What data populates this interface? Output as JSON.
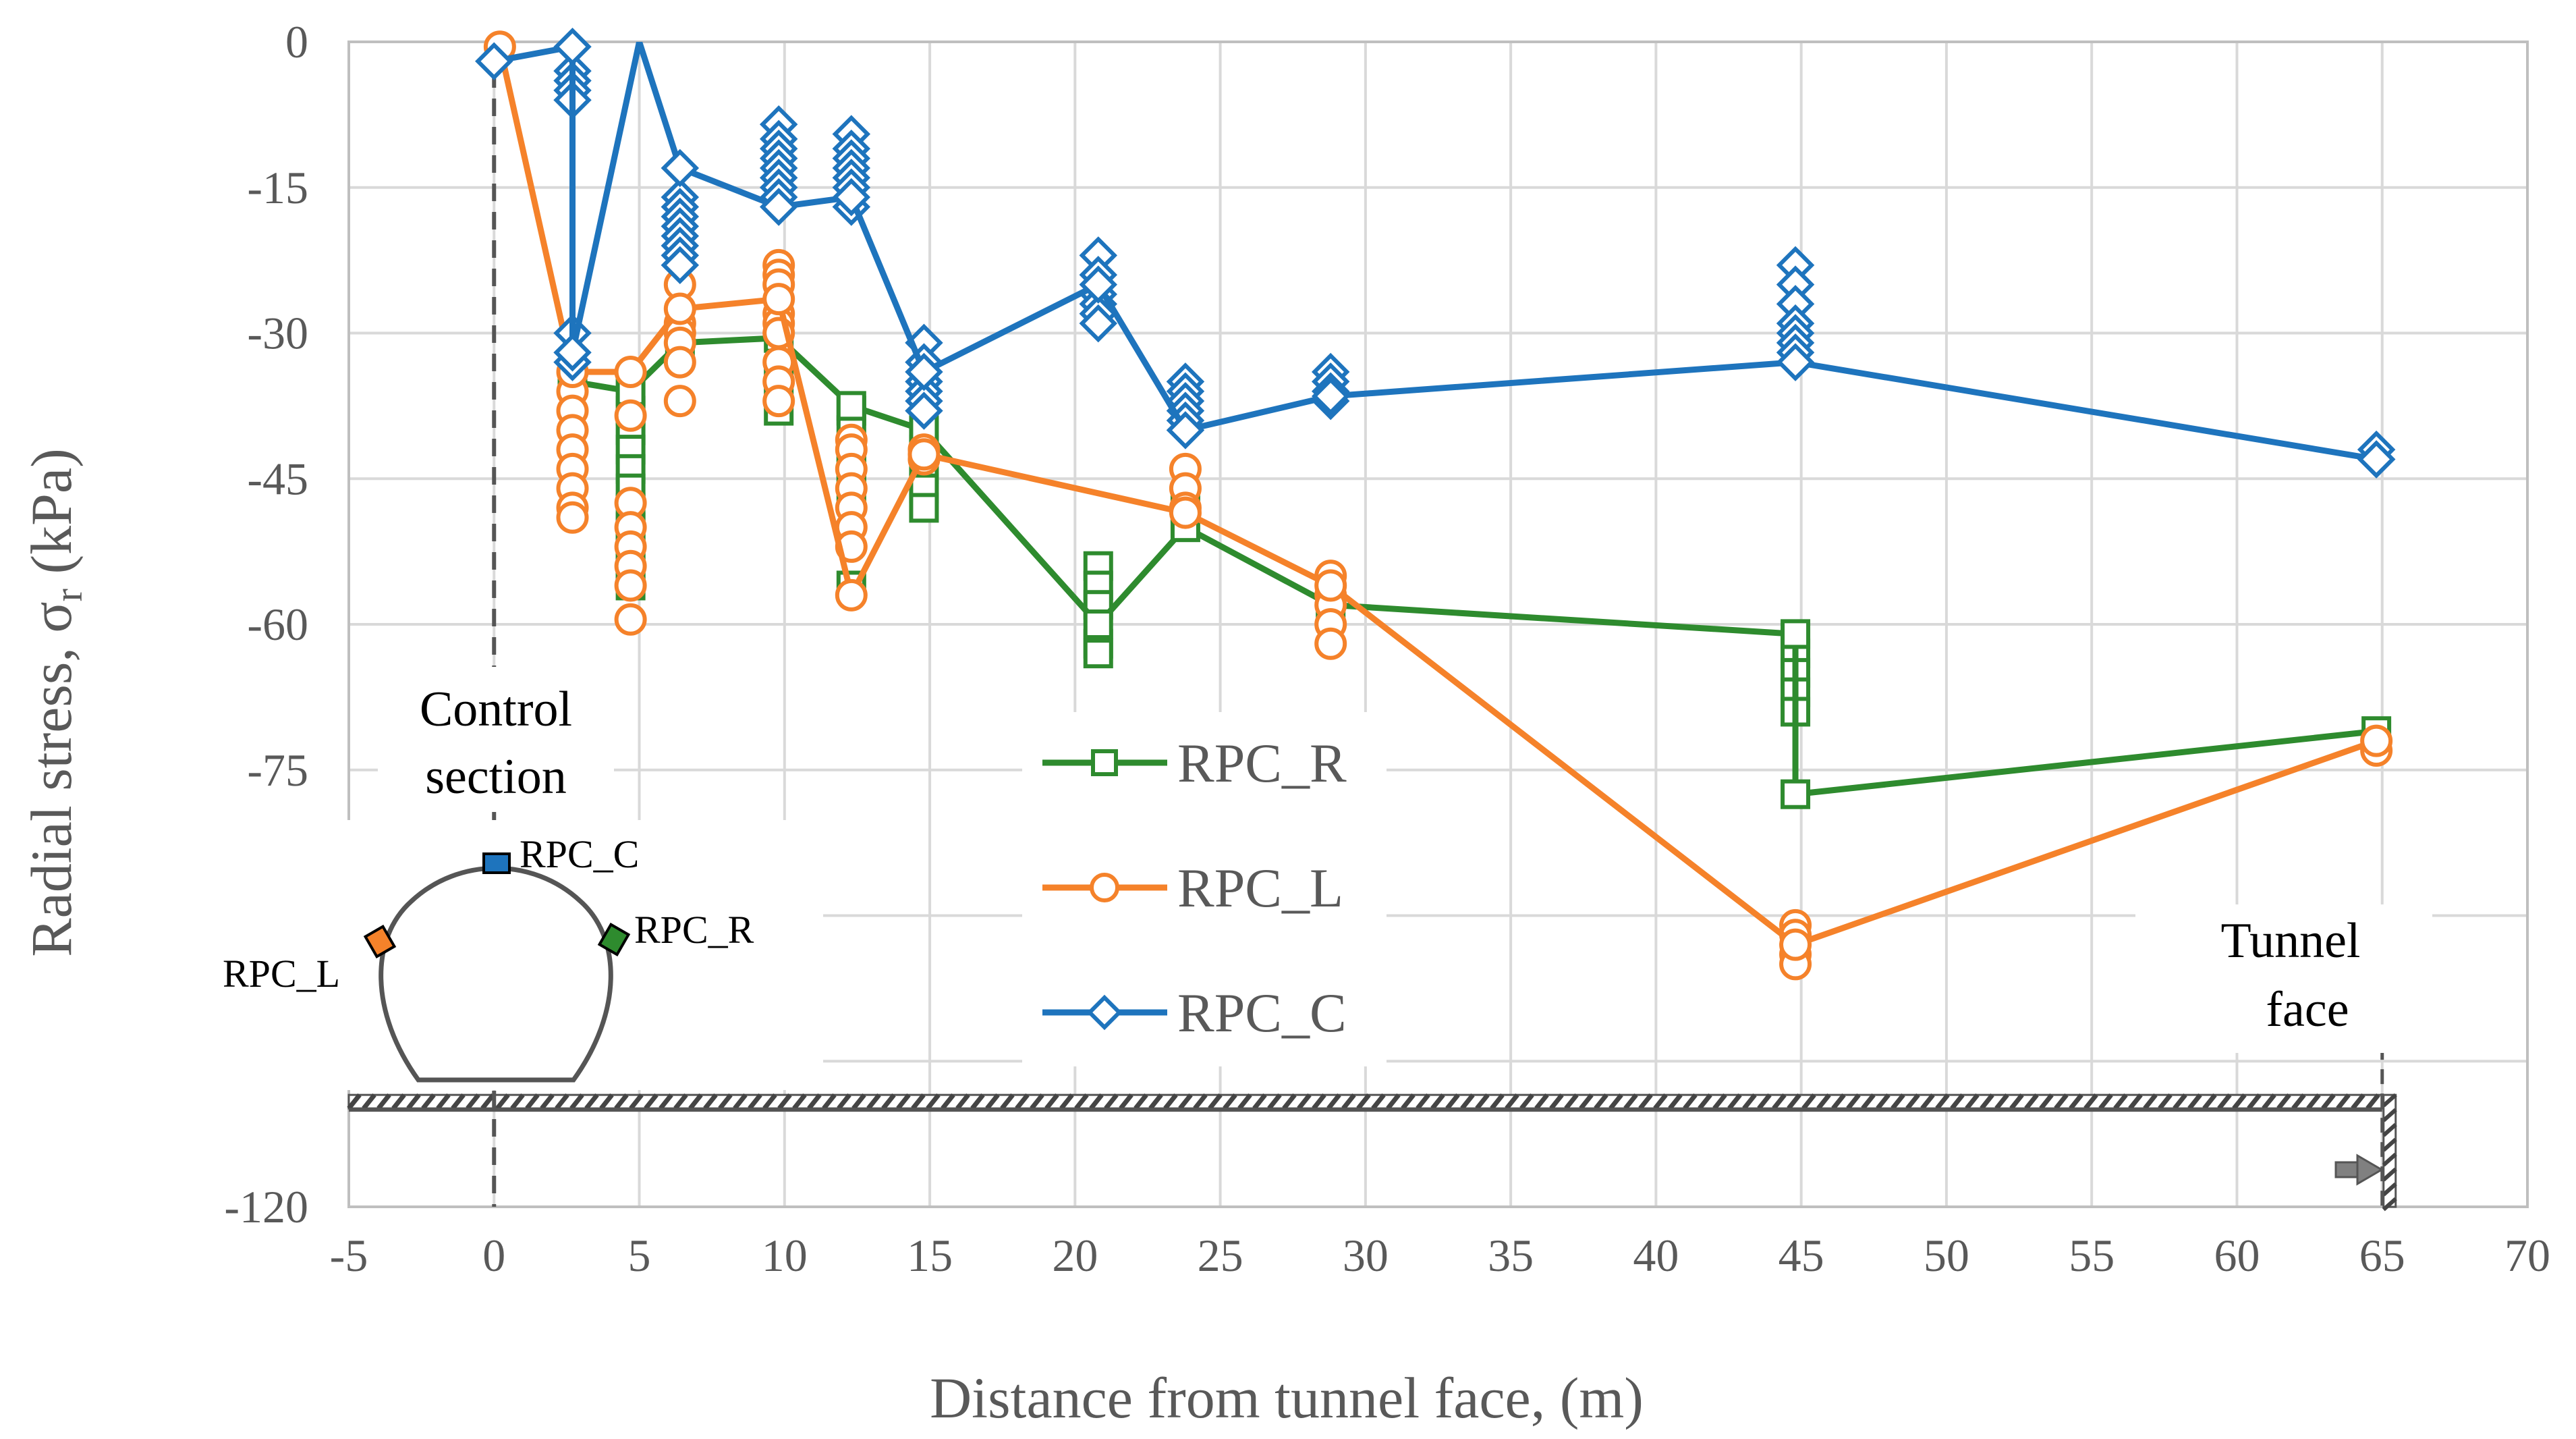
{
  "chart_data": {
    "type": "line",
    "xlabel": "Distance from tunnel face, (m)",
    "ylabel": "Radial stress, σ",
    "ylabel_subscript": "r",
    "ylabel_unit": " (kPa)",
    "xlim": [
      -5,
      70
    ],
    "ylim": [
      -120,
      0
    ],
    "x_ticks": [
      -5,
      0,
      5,
      10,
      15,
      20,
      25,
      30,
      35,
      40,
      45,
      50,
      55,
      60,
      65,
      70
    ],
    "y_ticks": [
      0,
      -15,
      -30,
      -45,
      -60,
      -75,
      -90,
      -105,
      -120
    ],
    "grid": true,
    "legend_position": "center",
    "series": [
      {
        "name": "RPC_R",
        "color": "#2E8B2E",
        "marker": "square",
        "x": [
          2.7,
          4.7,
          6.4,
          9.8,
          12.3,
          14.8,
          20.8,
          23.8,
          28.8,
          44.8,
          44.8,
          64.8
        ],
        "y": [
          -35,
          -36,
          -31,
          -30.5,
          -37.5,
          -40,
          -60,
          -50,
          -58,
          -61,
          -77.5,
          -71
        ]
      },
      {
        "name": "RPC_L",
        "color": "#F5822A",
        "marker": "circle",
        "x": [
          0.2,
          2.7,
          4.7,
          6.4,
          9.8,
          12.3,
          14.8,
          23.8,
          28.8,
          44.8,
          64.8
        ],
        "y": [
          -0.5,
          -34,
          -34,
          -27.5,
          -26.5,
          -57,
          -42.5,
          -48.5,
          -56,
          -93,
          -72
        ]
      },
      {
        "name": "RPC_C",
        "color": "#1E74BD",
        "marker": "diamond",
        "x": [
          0,
          2.7,
          2.7,
          5.0,
          6.4,
          9.8,
          12.3,
          14.8,
          20.8,
          23.8,
          28.8,
          44.8,
          64.8
        ],
        "y": [
          -2,
          -0.5,
          -32,
          0,
          -13,
          -17,
          -16,
          -34,
          -25,
          -40,
          -36.5,
          -33,
          -43
        ]
      }
    ],
    "scatter_points": {
      "RPC_R": [
        [
          4.7,
          -38
        ],
        [
          4.7,
          -40
        ],
        [
          4.7,
          -42
        ],
        [
          4.7,
          -44
        ],
        [
          4.7,
          -46
        ],
        [
          4.7,
          -48
        ],
        [
          4.7,
          -50
        ],
        [
          4.7,
          -52
        ],
        [
          4.7,
          -54
        ],
        [
          4.7,
          -56
        ],
        [
          9.8,
          -34
        ],
        [
          9.8,
          -36
        ],
        [
          9.8,
          -38
        ],
        [
          12.3,
          -38
        ],
        [
          12.3,
          -40
        ],
        [
          12.3,
          -42
        ],
        [
          12.3,
          -44
        ],
        [
          12.3,
          -46
        ],
        [
          12.3,
          -56
        ],
        [
          14.8,
          -42
        ],
        [
          14.8,
          -44
        ],
        [
          14.8,
          -46
        ],
        [
          14.8,
          -48
        ],
        [
          20.8,
          -54
        ],
        [
          20.8,
          -56
        ],
        [
          20.8,
          -58
        ],
        [
          20.8,
          -62
        ],
        [
          20.8,
          -63
        ],
        [
          23.8,
          -48
        ],
        [
          44.8,
          -63
        ],
        [
          44.8,
          -65
        ],
        [
          44.8,
          -67
        ],
        [
          44.8,
          -69
        ]
      ],
      "RPC_L": [
        [
          2.7,
          -36
        ],
        [
          2.7,
          -38
        ],
        [
          2.7,
          -40
        ],
        [
          2.7,
          -42
        ],
        [
          2.7,
          -44
        ],
        [
          2.7,
          -46
        ],
        [
          2.7,
          -48
        ],
        [
          2.7,
          -49
        ],
        [
          4.7,
          -38.5
        ],
        [
          4.7,
          -47.5
        ],
        [
          4.7,
          -50
        ],
        [
          4.7,
          -52
        ],
        [
          4.7,
          -54
        ],
        [
          4.7,
          -56
        ],
        [
          4.7,
          -59.5
        ],
        [
          6.4,
          -25
        ],
        [
          6.4,
          -29
        ],
        [
          6.4,
          -30
        ],
        [
          6.4,
          -31
        ],
        [
          6.4,
          -33
        ],
        [
          6.4,
          -37
        ],
        [
          9.8,
          -23
        ],
        [
          9.8,
          -24
        ],
        [
          9.8,
          -25
        ],
        [
          9.8,
          -28
        ],
        [
          9.8,
          -29
        ],
        [
          9.8,
          -30
        ],
        [
          9.8,
          -33
        ],
        [
          9.8,
          -35
        ],
        [
          9.8,
          -37
        ],
        [
          12.3,
          -41
        ],
        [
          12.3,
          -42
        ],
        [
          12.3,
          -44
        ],
        [
          12.3,
          -46
        ],
        [
          12.3,
          -48
        ],
        [
          12.3,
          -50
        ],
        [
          12.3,
          -52
        ],
        [
          14.8,
          -42
        ],
        [
          14.8,
          -43
        ],
        [
          23.8,
          -44
        ],
        [
          23.8,
          -46
        ],
        [
          23.8,
          -48
        ],
        [
          28.8,
          -55
        ],
        [
          28.8,
          -57
        ],
        [
          28.8,
          -58
        ],
        [
          28.8,
          -60
        ],
        [
          28.8,
          -62
        ],
        [
          44.8,
          -91
        ],
        [
          44.8,
          -92
        ],
        [
          44.8,
          -94
        ],
        [
          44.8,
          -95
        ],
        [
          64.8,
          -73
        ]
      ],
      "RPC_C": [
        [
          2.7,
          -3
        ],
        [
          2.7,
          -4
        ],
        [
          2.7,
          -5
        ],
        [
          2.7,
          -6
        ],
        [
          2.7,
          -30
        ],
        [
          2.7,
          -33
        ],
        [
          6.4,
          -16
        ],
        [
          6.4,
          -17
        ],
        [
          6.4,
          -18
        ],
        [
          6.4,
          -19
        ],
        [
          6.4,
          -20
        ],
        [
          6.4,
          -21
        ],
        [
          6.4,
          -22
        ],
        [
          6.4,
          -23
        ],
        [
          9.8,
          -8.5
        ],
        [
          9.8,
          -10
        ],
        [
          9.8,
          -11
        ],
        [
          9.8,
          -12
        ],
        [
          9.8,
          -13
        ],
        [
          9.8,
          -14
        ],
        [
          9.8,
          -15
        ],
        [
          9.8,
          -16
        ],
        [
          12.3,
          -9.5
        ],
        [
          12.3,
          -11
        ],
        [
          12.3,
          -12
        ],
        [
          12.3,
          -13
        ],
        [
          12.3,
          -14
        ],
        [
          12.3,
          -15
        ],
        [
          12.3,
          -17
        ],
        [
          14.8,
          -31
        ],
        [
          14.8,
          -33
        ],
        [
          14.8,
          -35
        ],
        [
          14.8,
          -36
        ],
        [
          14.8,
          -37
        ],
        [
          14.8,
          -38
        ],
        [
          20.8,
          -22
        ],
        [
          20.8,
          -24
        ],
        [
          20.8,
          -26
        ],
        [
          20.8,
          -27
        ],
        [
          20.8,
          -28
        ],
        [
          20.8,
          -29
        ],
        [
          23.8,
          -35
        ],
        [
          23.8,
          -36
        ],
        [
          23.8,
          -37
        ],
        [
          23.8,
          -38
        ],
        [
          23.8,
          -39
        ],
        [
          28.8,
          -34
        ],
        [
          28.8,
          -35
        ],
        [
          28.8,
          -36
        ],
        [
          28.8,
          -37
        ],
        [
          44.8,
          -23
        ],
        [
          44.8,
          -25
        ],
        [
          44.8,
          -27
        ],
        [
          44.8,
          -29
        ],
        [
          44.8,
          -30
        ],
        [
          44.8,
          -31
        ],
        [
          44.8,
          -32
        ],
        [
          64.8,
          -42
        ],
        [
          64.8,
          -43
        ]
      ]
    },
    "annotations": {
      "control_section_line1": "Control",
      "control_section_line2": "section",
      "tunnel_face_line1": "Tunnel",
      "tunnel_face_line2": "face",
      "rpc_c_label": "RPC_C",
      "rpc_r_label": "RPC_R",
      "rpc_l_label": "RPC_L"
    }
  }
}
